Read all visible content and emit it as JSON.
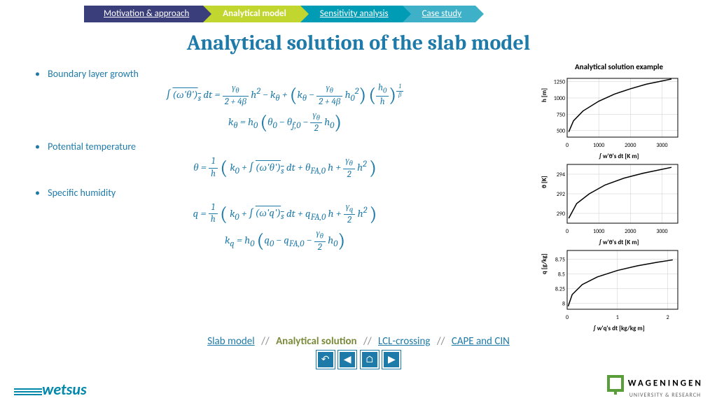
{
  "nav": [
    {
      "label": "Motivation & approach",
      "color": "#3a3e7a"
    },
    {
      "label": "Analytical model",
      "color": "#c1d62e"
    },
    {
      "label": "Sensitivity analysis",
      "color": "#009bb4"
    },
    {
      "label": "Case study",
      "color": "#3eb1c8"
    }
  ],
  "title": "Analytical solution of the slab model",
  "bullets": {
    "b1": "Boundary layer growth",
    "b2": "Potential temperature",
    "b3": "Specific humidity"
  },
  "charts": {
    "title": "Analytical solution example",
    "c1": {
      "ylabel": "h [m]",
      "xlabel": "∫ w'θ's dt [K m]",
      "ylim": [
        400,
        1300
      ],
      "yticks": [
        500,
        750,
        1000,
        1250
      ],
      "xlim": [
        0,
        3500
      ],
      "xticks": [
        0,
        1000,
        2000,
        3000
      ],
      "data": [
        [
          50,
          480
        ],
        [
          200,
          650
        ],
        [
          500,
          800
        ],
        [
          1000,
          950
        ],
        [
          1500,
          1060
        ],
        [
          2000,
          1140
        ],
        [
          2500,
          1210
        ],
        [
          3000,
          1260
        ],
        [
          3300,
          1290
        ]
      ],
      "line_color": "#000000",
      "grid_color": "#cccccc",
      "line_width": 1.5
    },
    "c2": {
      "ylabel": "θ [K]",
      "xlabel": "∫ w'θ's dt [K m]",
      "ylim": [
        289,
        295
      ],
      "yticks": [
        290,
        292,
        294
      ],
      "xlim": [
        0,
        3500
      ],
      "xticks": [
        0,
        1000,
        2000,
        3000
      ],
      "data": [
        [
          50,
          289.5
        ],
        [
          300,
          291
        ],
        [
          700,
          292
        ],
        [
          1200,
          292.9
        ],
        [
          1800,
          293.6
        ],
        [
          2400,
          294.1
        ],
        [
          3000,
          294.5
        ],
        [
          3300,
          294.7
        ]
      ],
      "line_color": "#000000",
      "grid_color": "#cccccc",
      "line_width": 1.5
    },
    "c3": {
      "ylabel": "q [g/kg]",
      "xlabel": "∫ w'q's dt [kg/kg m]",
      "ylim": [
        7.9,
        8.9
      ],
      "yticks": [
        8.0,
        8.25,
        8.5,
        8.75
      ],
      "xlim": [
        0,
        2.2
      ],
      "xticks": [
        0,
        1,
        2
      ],
      "data": [
        [
          0.02,
          7.95
        ],
        [
          0.1,
          8.15
        ],
        [
          0.3,
          8.32
        ],
        [
          0.6,
          8.45
        ],
        [
          1.0,
          8.56
        ],
        [
          1.4,
          8.64
        ],
        [
          1.8,
          8.7
        ],
        [
          2.1,
          8.74
        ]
      ],
      "line_color": "#000000",
      "grid_color": "#cccccc",
      "line_width": 1.5
    }
  },
  "subnav": {
    "i1": "Slab model",
    "i2": "Analytical solution",
    "i3": "LCL-crossing",
    "i4": "CAPE and CIN"
  },
  "footer": {
    "left": "wetsus",
    "right_name": "WAGENINGEN",
    "right_sub": "UNIVERSITY & RESEARCH"
  },
  "colors": {
    "primary": "#1e7aa8",
    "olive": "#7a8a3a"
  }
}
